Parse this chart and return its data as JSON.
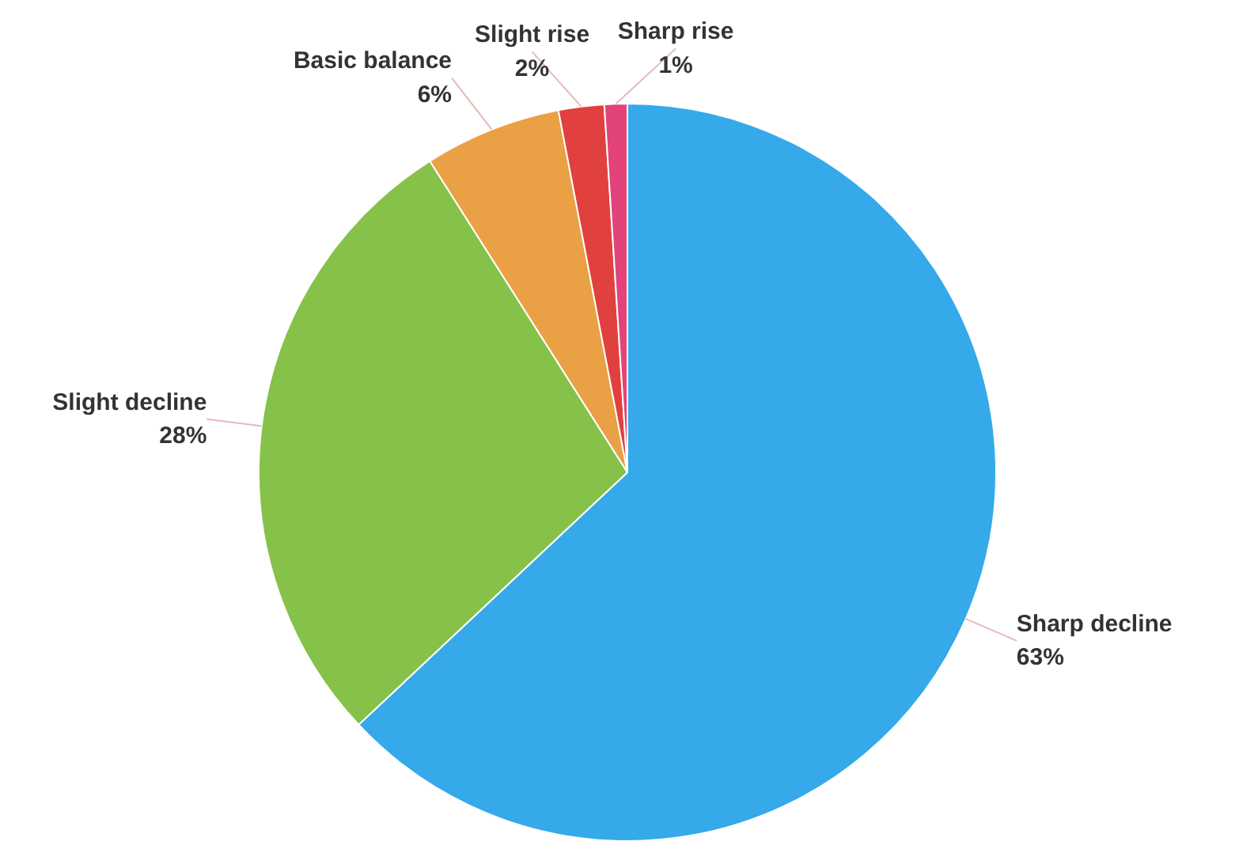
{
  "chart_data": {
    "type": "pie",
    "categories": [
      "Sharp decline",
      "Slight decline",
      "Basic balance",
      "Slight rise",
      "Sharp rise"
    ],
    "values": [
      63,
      28,
      6,
      2,
      1
    ],
    "colors": [
      "#35a9e9",
      "#86c24a",
      "#eaa044",
      "#e0413f",
      "#e2437a"
    ],
    "value_labels": [
      "63%",
      "28%",
      "6%",
      "2%",
      "1%"
    ]
  }
}
